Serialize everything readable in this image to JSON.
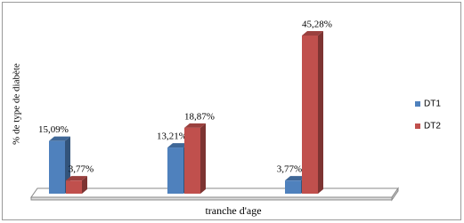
{
  "chart_data": {
    "type": "bar3d",
    "y_label": "% de type de diabète",
    "x_label": "tranche d'age",
    "categories": [
      null,
      null,
      null
    ],
    "series": [
      {
        "name": "DT1",
        "color": "#4f81bd",
        "values": [
          15.09,
          13.21,
          3.77
        ],
        "value_labels": [
          "15,09%",
          "13,21%",
          "3,77%"
        ]
      },
      {
        "name": "DT2",
        "color": "#c0504d",
        "values": [
          3.77,
          18.87,
          45.28
        ],
        "value_labels": [
          "3,77%",
          "18,87%",
          "45,28%"
        ]
      }
    ],
    "legend": "right"
  }
}
